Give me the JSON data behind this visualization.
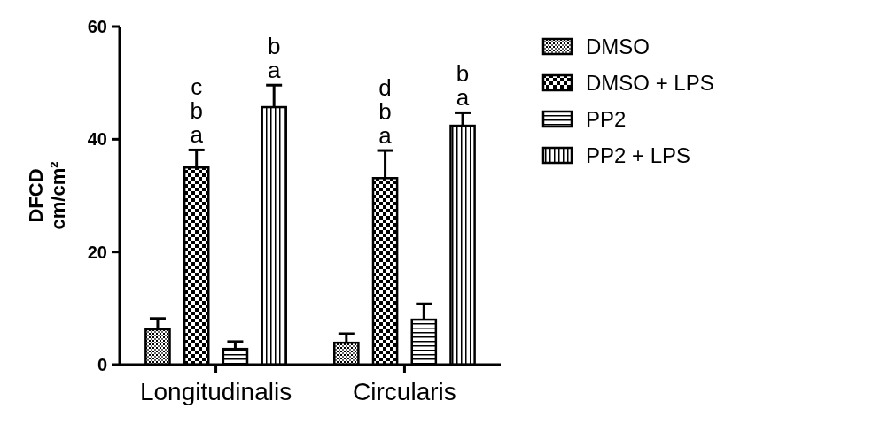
{
  "chart_data": {
    "type": "bar",
    "ylabel": "DFCD\ncm/cm²",
    "categories": [
      "Longitudinalis",
      "Circularis"
    ],
    "series": [
      {
        "name": "DMSO",
        "color": "#000000",
        "values": [
          6.3,
          3.9
        ],
        "errors": [
          1.9,
          1.6
        ]
      },
      {
        "name": "DMSO + LPS",
        "color": "#000000",
        "values": [
          35,
          33.1
        ],
        "errors": [
          3.1,
          4.9
        ]
      },
      {
        "name": "PP2",
        "color": "#000000",
        "values": [
          2.8,
          8
        ],
        "errors": [
          1.3,
          2.8
        ]
      },
      {
        "name": "PP2 + LPS",
        "color": "#000000",
        "values": [
          45.7,
          42.4
        ],
        "errors": [
          3.9,
          2.3
        ]
      }
    ],
    "ylim": [
      0,
      60
    ],
    "yticks": [
      0,
      20,
      40,
      60
    ],
    "legend": "right",
    "grid": false,
    "annotations": [
      "c\nb\na",
      "b\na",
      "d\nb\na",
      "b\na"
    ]
  }
}
